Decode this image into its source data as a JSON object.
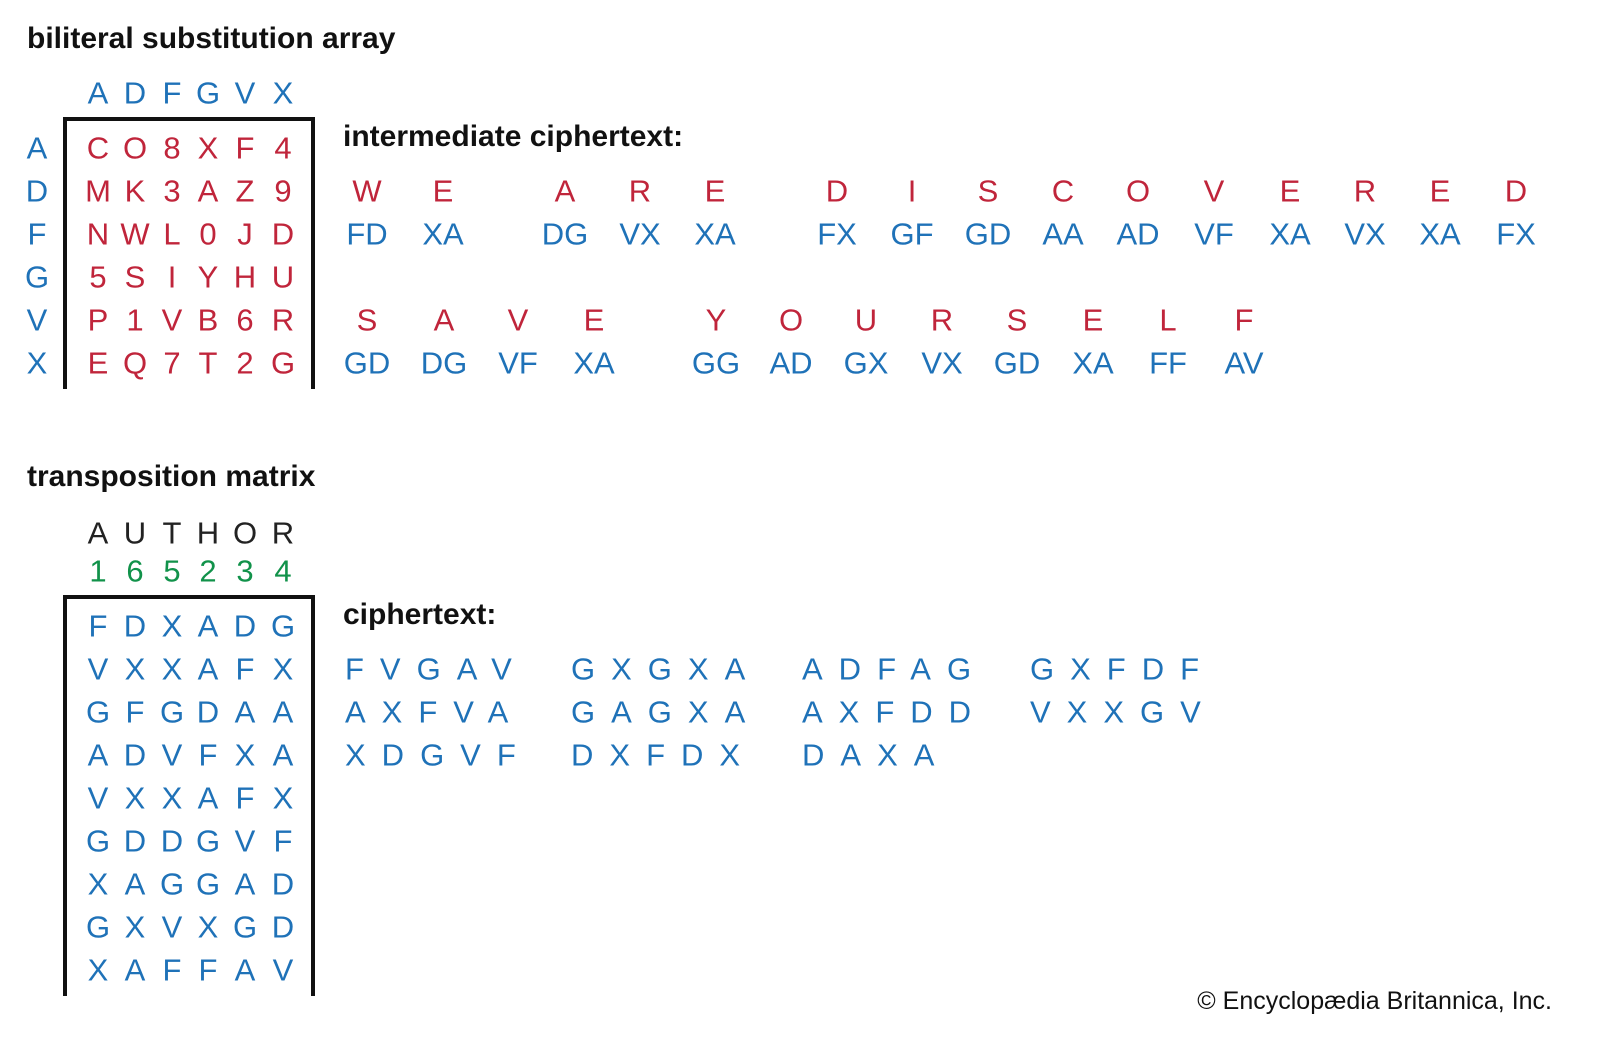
{
  "colors": {
    "blue": "#1f72b8",
    "red": "#c0253b",
    "green": "#11924a"
  },
  "substitution": {
    "title": "biliteral substitution array",
    "col_headers": [
      "A",
      "D",
      "F",
      "G",
      "V",
      "X"
    ],
    "row_headers": [
      "A",
      "D",
      "F",
      "G",
      "V",
      "X"
    ],
    "cells": [
      [
        "C",
        "O",
        "8",
        "X",
        "F",
        "4"
      ],
      [
        "M",
        "K",
        "3",
        "A",
        "Z",
        "9"
      ],
      [
        "N",
        "W",
        "L",
        "0",
        "J",
        "D"
      ],
      [
        "5",
        "S",
        "I",
        "Y",
        "H",
        "U"
      ],
      [
        "P",
        "1",
        "V",
        "B",
        "6",
        "R"
      ],
      [
        "E",
        "Q",
        "7",
        "T",
        "2",
        "G"
      ]
    ]
  },
  "intermediate": {
    "title": "intermediate ciphertext:",
    "lines": [
      {
        "plain": [
          "W",
          "E",
          "A",
          "R",
          "E",
          "D",
          "I",
          "S",
          "C",
          "O",
          "V",
          "E",
          "R",
          "E",
          "D"
        ],
        "cipher": [
          "FD",
          "XA",
          "DG",
          "VX",
          "XA",
          "FX",
          "GF",
          "GD",
          "AA",
          "AD",
          "VF",
          "XA",
          "VX",
          "XA",
          "FX"
        ]
      },
      {
        "plain": [
          "S",
          "A",
          "V",
          "E",
          "Y",
          "O",
          "U",
          "R",
          "S",
          "E",
          "L",
          "F"
        ],
        "cipher": [
          "GD",
          "DG",
          "VF",
          "XA",
          "GG",
          "AD",
          "GX",
          "VX",
          "GD",
          "XA",
          "FF",
          "AV"
        ]
      }
    ]
  },
  "transposition": {
    "title": "transposition matrix",
    "keyword": [
      "A",
      "U",
      "T",
      "H",
      "O",
      "R"
    ],
    "order": [
      "1",
      "6",
      "5",
      "2",
      "3",
      "4"
    ],
    "cells": [
      [
        "F",
        "D",
        "X",
        "A",
        "D",
        "G"
      ],
      [
        "V",
        "X",
        "X",
        "A",
        "F",
        "X"
      ],
      [
        "G",
        "F",
        "G",
        "D",
        "A",
        "A"
      ],
      [
        "A",
        "D",
        "V",
        "F",
        "X",
        "A"
      ],
      [
        "V",
        "X",
        "X",
        "A",
        "F",
        "X"
      ],
      [
        "G",
        "D",
        "D",
        "G",
        "V",
        "F"
      ],
      [
        "X",
        "A",
        "G",
        "G",
        "A",
        "D"
      ],
      [
        "G",
        "X",
        "V",
        "X",
        "G",
        "D"
      ],
      [
        "X",
        "A",
        "F",
        "F",
        "A",
        "V"
      ]
    ]
  },
  "ciphertext": {
    "title": "ciphertext:",
    "rows": [
      [
        "FVGAV",
        "GXGXA",
        "ADFAG",
        "GXFDF"
      ],
      [
        "AXFVA",
        "GAGXA",
        "AXFDD",
        "VXXGV"
      ],
      [
        "XDGVF",
        "DXFDX",
        "DAXA"
      ]
    ]
  },
  "copyright": "© Encyclopædia Britannica, Inc."
}
